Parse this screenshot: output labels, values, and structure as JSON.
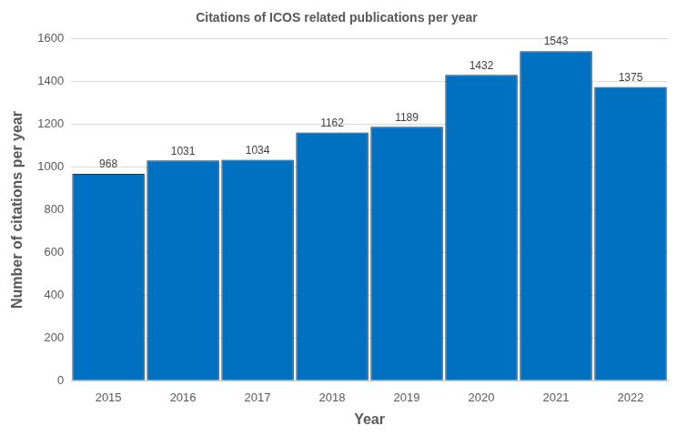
{
  "chart_data": {
    "type": "bar",
    "title": "Citations of ICOS related publications per year",
    "x_label": "Year",
    "y_label": "Number of citations per year",
    "categories": [
      "2015",
      "2016",
      "2017",
      "2018",
      "2019",
      "2020",
      "2021",
      "2022"
    ],
    "values": [
      968,
      1031,
      1034,
      1162,
      1189,
      1432,
      1543,
      1375
    ],
    "color": "#0070c0",
    "ylim": [
      0,
      1600
    ],
    "yticks": [
      0,
      200,
      400,
      600,
      800,
      1000,
      1200,
      1400,
      1600
    ],
    "grid": true,
    "data_labels": true
  }
}
